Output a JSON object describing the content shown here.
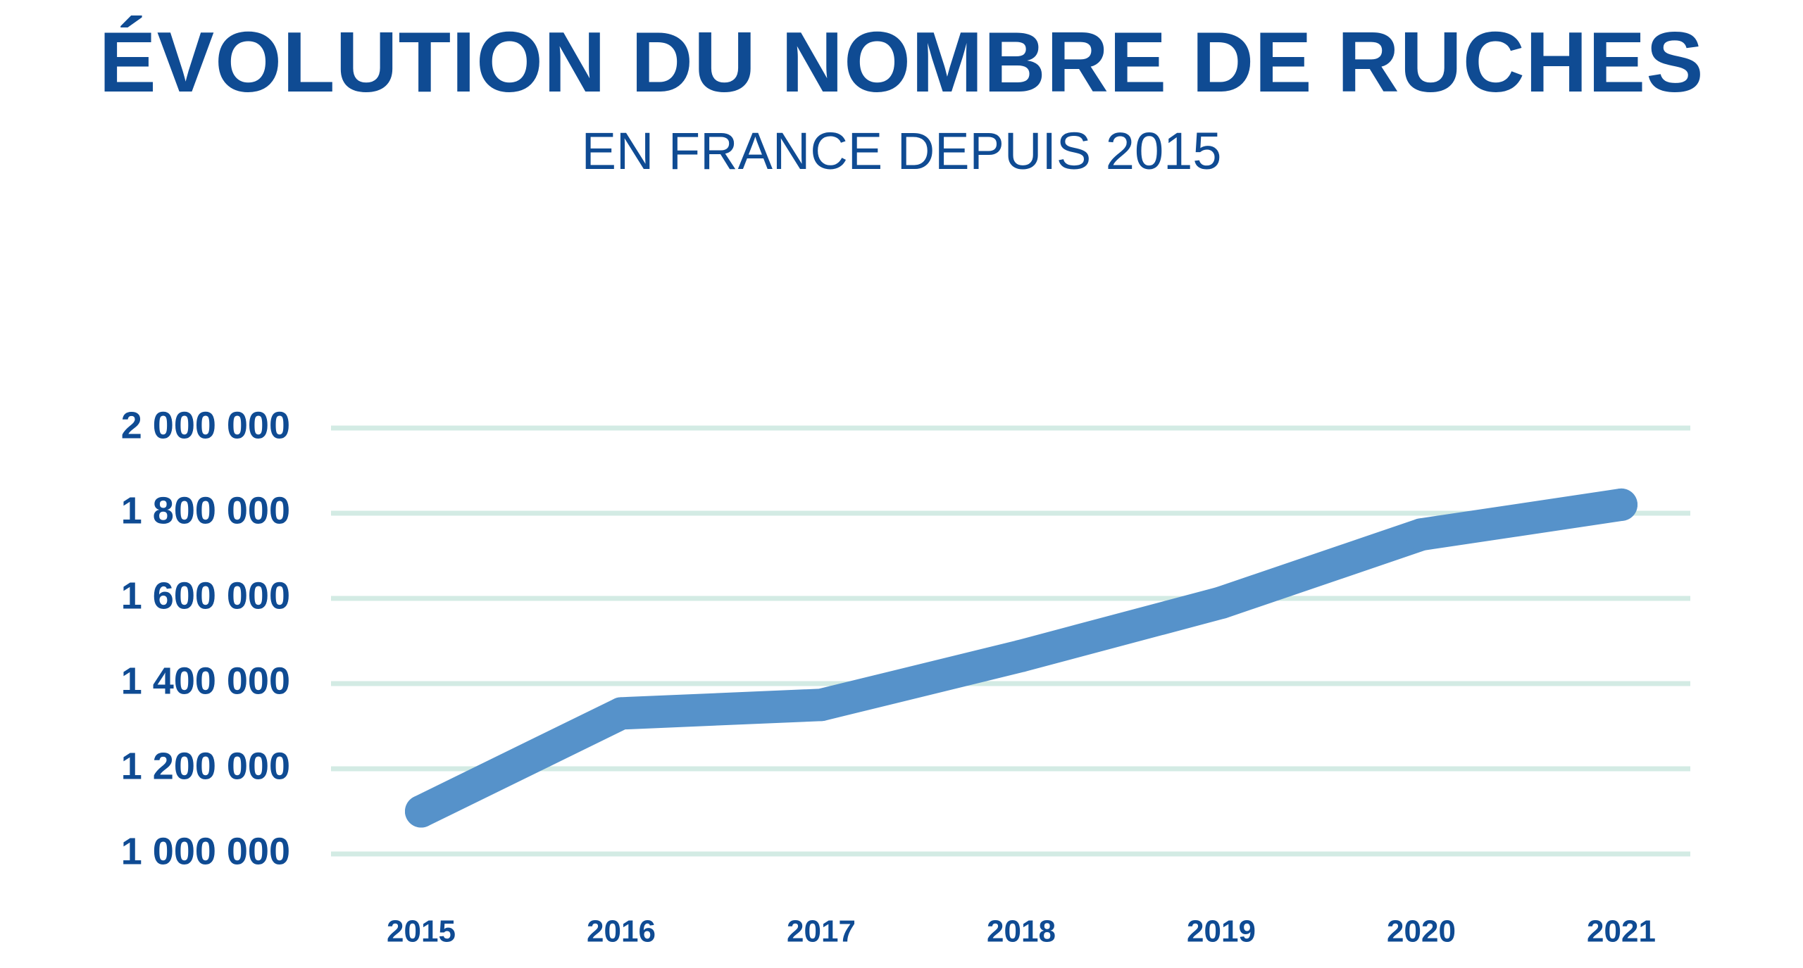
{
  "title": "ÉVOLUTION DU NOMBRE DE RUCHES",
  "subtitle": "EN FRANCE DEPUIS 2015",
  "colors": {
    "text": "#0f4b93",
    "line": "#5692ca",
    "grid": "#d3ebe4"
  },
  "chart_data": {
    "type": "line",
    "title": "ÉVOLUTION DU NOMBRE DE RUCHES",
    "subtitle": "EN FRANCE DEPUIS 2015",
    "xlabel": "",
    "ylabel": "",
    "categories": [
      "2015",
      "2016",
      "2017",
      "2018",
      "2019",
      "2020",
      "2021"
    ],
    "series": [
      {
        "values": [
          1100000,
          1330000,
          1350000,
          1465000,
          1590000,
          1750000,
          1820000
        ]
      }
    ],
    "ylim": [
      1000000,
      2000000
    ],
    "yticks": [
      1000000,
      1200000,
      1400000,
      1600000,
      1800000,
      2000000
    ],
    "ytick_labels": [
      "1 000 000",
      "1 200 000",
      "1 400 000",
      "1 600 000",
      "1 800 000",
      "2 000 000"
    ],
    "grid": true,
    "legend": "none"
  }
}
